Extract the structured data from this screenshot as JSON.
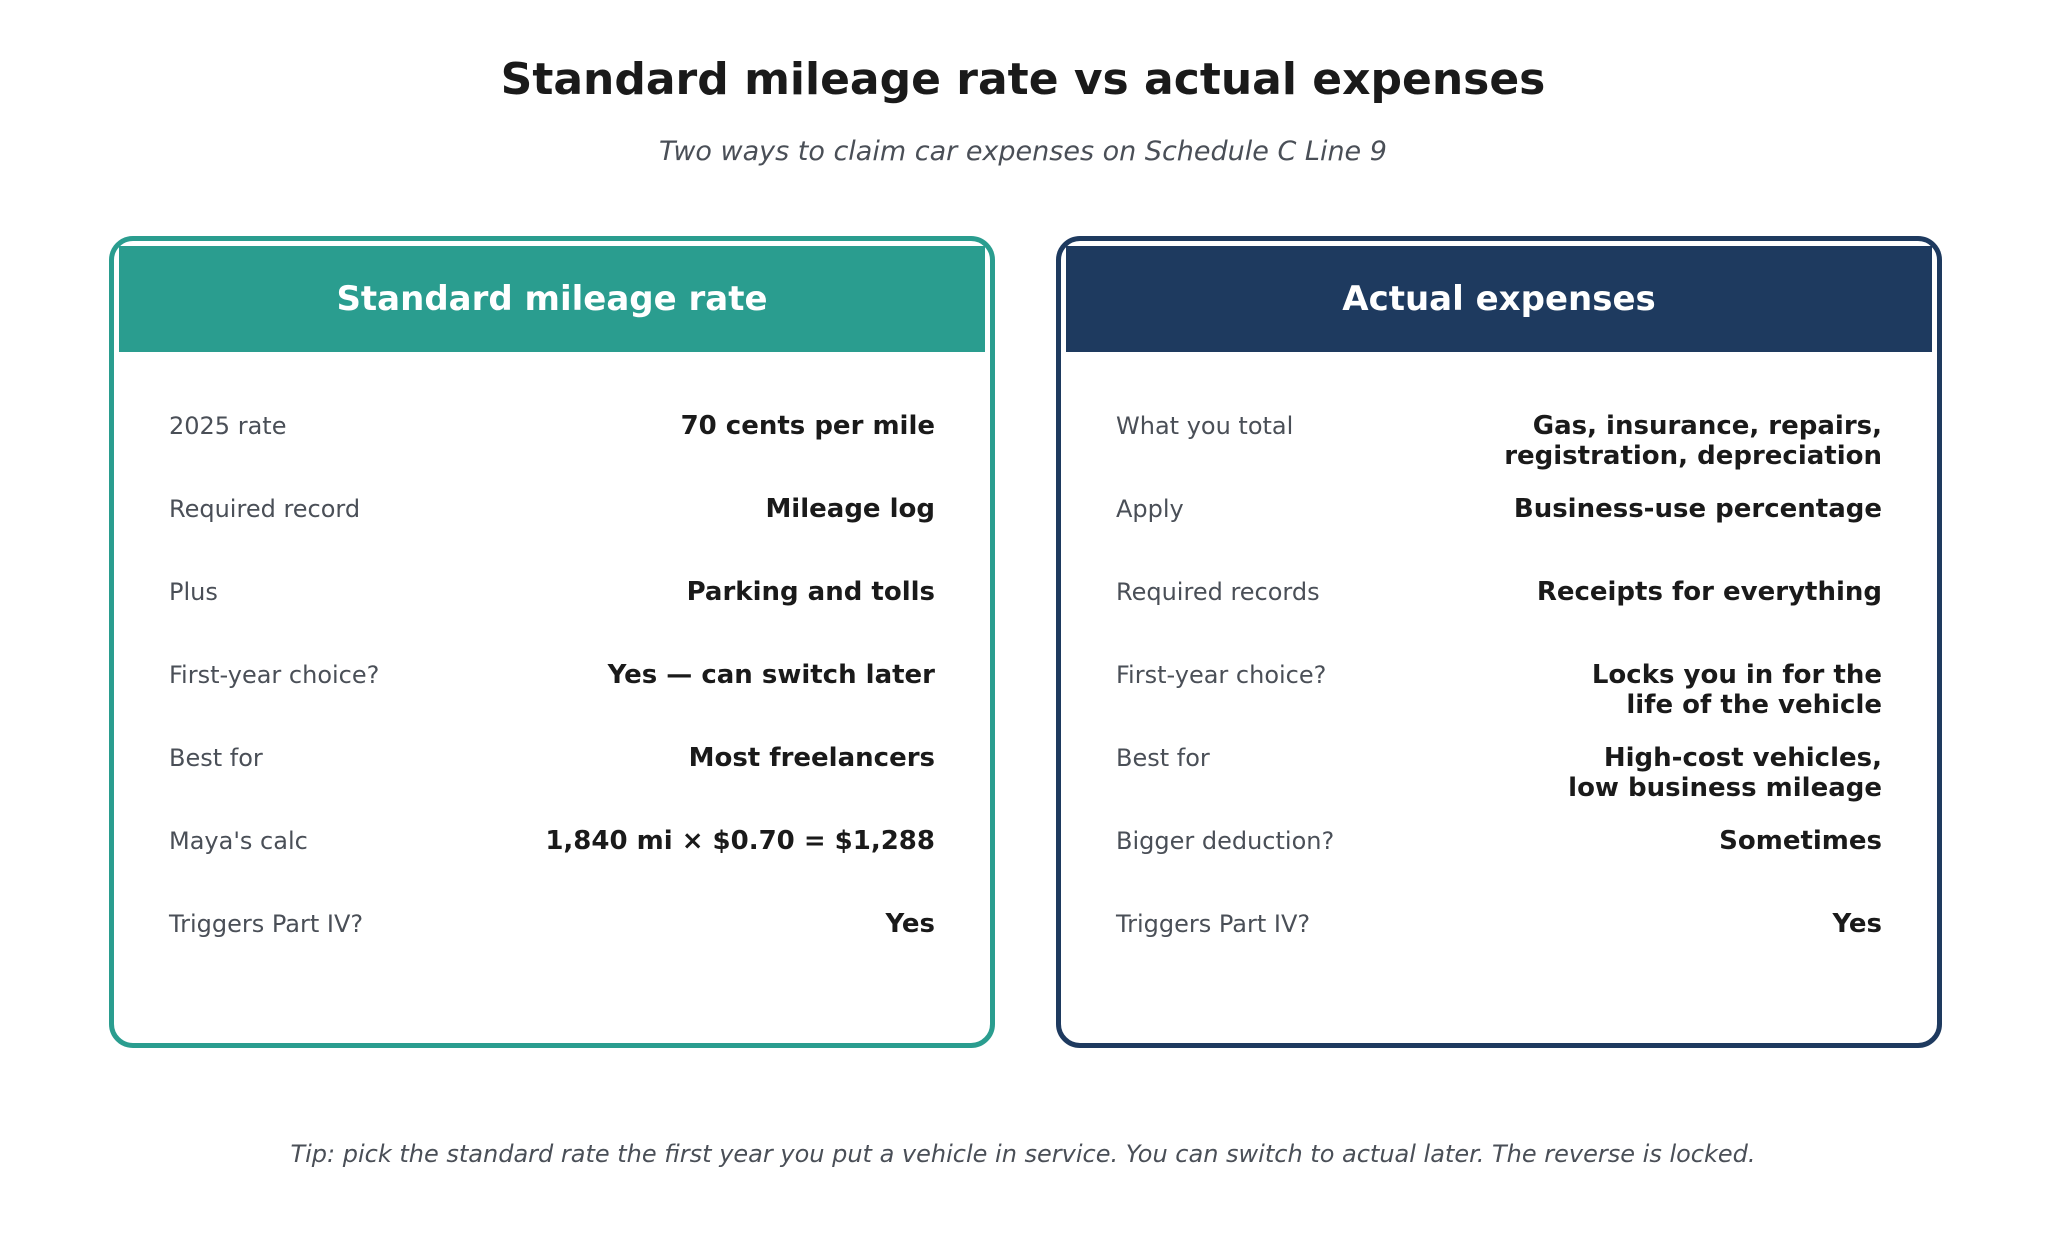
{
  "title": "Standard mileage rate vs actual expenses",
  "subtitle": "Two ways to claim car expenses on Schedule C Line 9",
  "colors": {
    "standard_accent": "#2a9d8f",
    "actual_accent": "#1e3a5f"
  },
  "standard": {
    "header": "Standard mileage rate",
    "rows": [
      {
        "label": "2025 rate",
        "value": "70 cents per mile"
      },
      {
        "label": "Required record",
        "value": "Mileage log"
      },
      {
        "label": "Plus",
        "value": "Parking and tolls"
      },
      {
        "label": "First-year choice?",
        "value": "Yes — can switch later"
      },
      {
        "label": "Best for",
        "value": "Most freelancers"
      },
      {
        "label": "Maya's calc",
        "value": "1,840 mi × $0.70 = $1,288"
      },
      {
        "label": "Triggers Part IV?",
        "value": "Yes"
      }
    ]
  },
  "actual": {
    "header": "Actual expenses",
    "rows": [
      {
        "label": "What you total",
        "value": "Gas, insurance, repairs,\nregistration, depreciation"
      },
      {
        "label": "Apply",
        "value": "Business-use percentage"
      },
      {
        "label": "Required records",
        "value": "Receipts for everything"
      },
      {
        "label": "First-year choice?",
        "value": "Locks you in for the\nlife of the vehicle"
      },
      {
        "label": "Best for",
        "value": "High-cost vehicles,\nlow business mileage"
      },
      {
        "label": "Bigger deduction?",
        "value": "Sometimes"
      },
      {
        "label": "Triggers Part IV?",
        "value": "Yes"
      }
    ]
  },
  "tip": "Tip: pick the standard rate the first year you put a vehicle in service. You can switch to actual later. The reverse is locked."
}
